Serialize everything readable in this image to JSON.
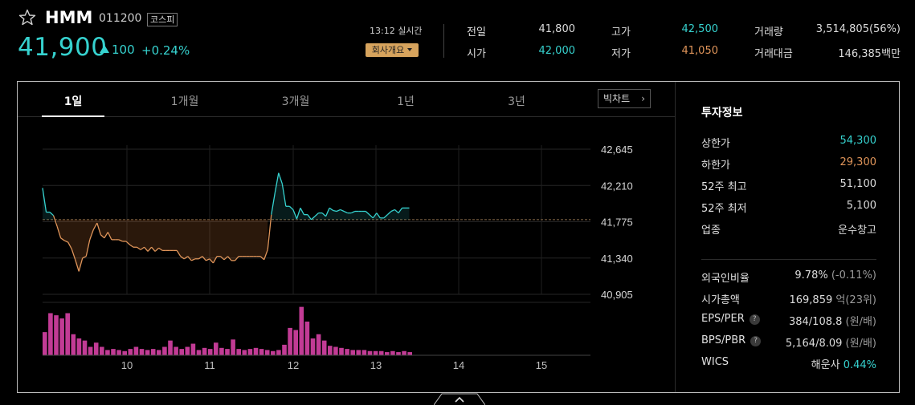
{
  "stock": {
    "name": "HMM",
    "code": "011200",
    "market": "코스피",
    "price": "41,900",
    "change": "100",
    "change_pct": "+0.24%"
  },
  "realtime": "13:12 실시간",
  "company_btn": "회사개요",
  "stats": {
    "prev_label": "전일",
    "prev": "41,800",
    "open_label": "시가",
    "open": "42,000",
    "high_label": "고가",
    "high": "42,500",
    "low_label": "저가",
    "low": "41,050",
    "volume_label": "거래량",
    "volume": "3,514,805(56%)",
    "amount_label": "거래대금",
    "amount": "146,385백만"
  },
  "tabs": [
    "1일",
    "1개월",
    "3개월",
    "1년",
    "3년"
  ],
  "big_chart": "빅차트",
  "big_chart_arrow": "›",
  "invest": {
    "title": "투자정보",
    "rows1": [
      {
        "k": "상한가",
        "v": "54,300",
        "color": "#36d2cf"
      },
      {
        "k": "하한가",
        "v": "29,300",
        "color": "#e0955a"
      },
      {
        "k": "52주 최고",
        "v": "51,100"
      },
      {
        "k": "52주 최저",
        "v": "5,100"
      },
      {
        "k": "업종",
        "v": "운수창고"
      }
    ],
    "foreign_label": "외국인비율",
    "foreign_v": "9.78%",
    "foreign_chg": "(-0.11%)",
    "cap_label": "시가총액",
    "cap_v": "169,859",
    "cap_unit": "억(23위)",
    "eps_label": "EPS/PER",
    "eps_v": "384/108.8",
    "eps_unit": "(원/배)",
    "bps_label": "BPS/PBR",
    "bps_v": "5,164/8.09",
    "bps_unit": "(원/배)",
    "wics_label": "WICS",
    "wics_v": "해운사",
    "wics_chg": "0.44%",
    "qmark": "?"
  },
  "chart_data": {
    "type": "line",
    "y_ticks": [
      "42,645",
      "42,210",
      "41,775",
      "41,340",
      "40,905"
    ],
    "y_tick_values": [
      42645,
      42210,
      41775,
      41340,
      40905
    ],
    "x_ticks": [
      "10",
      "11",
      "12",
      "13",
      "14",
      "15"
    ],
    "ylim": [
      40905,
      42645
    ],
    "prev_close": 41800,
    "price_series": [
      42180,
      41890,
      41890,
      41850,
      41720,
      41580,
      41550,
      41530,
      41450,
      41320,
      41180,
      41340,
      41360,
      41560,
      41680,
      41760,
      41620,
      41580,
      41650,
      41560,
      41560,
      41560,
      41540,
      41540,
      41500,
      41470,
      41470,
      41440,
      41470,
      41420,
      41470,
      41420,
      41460,
      41430,
      41430,
      41430,
      41430,
      41430,
      41360,
      41330,
      41360,
      41310,
      41330,
      41330,
      41360,
      41310,
      41330,
      41280,
      41360,
      41360,
      41320,
      41360,
      41310,
      41310,
      41360,
      41360,
      41360,
      41360,
      41360,
      41360,
      41360,
      41320,
      41440,
      41860,
      42120,
      42360,
      42230,
      41960,
      41960,
      41920,
      41810,
      41940,
      41860,
      41860,
      41800,
      41840,
      41880,
      41880,
      41840,
      41940,
      41910,
      41900,
      41920,
      41900,
      41880,
      41880,
      41900,
      41900,
      41900,
      41900,
      41860,
      41820,
      41880,
      41820,
      41820,
      41860,
      41900,
      41920,
      41880,
      41940,
      41940,
      41940
    ],
    "volume_series": [
      22,
      40,
      38,
      35,
      40,
      20,
      16,
      14,
      8,
      12,
      8,
      5,
      6,
      5,
      4,
      6,
      8,
      6,
      5,
      6,
      5,
      8,
      14,
      8,
      6,
      8,
      11,
      5,
      7,
      6,
      12,
      7,
      6,
      15,
      6,
      5,
      6,
      7,
      6,
      5,
      4,
      5,
      10,
      26,
      24,
      46,
      32,
      16,
      20,
      14,
      9,
      8,
      7,
      6,
      5,
      5,
      5,
      4,
      4,
      4,
      3,
      4,
      3,
      4,
      3
    ]
  }
}
